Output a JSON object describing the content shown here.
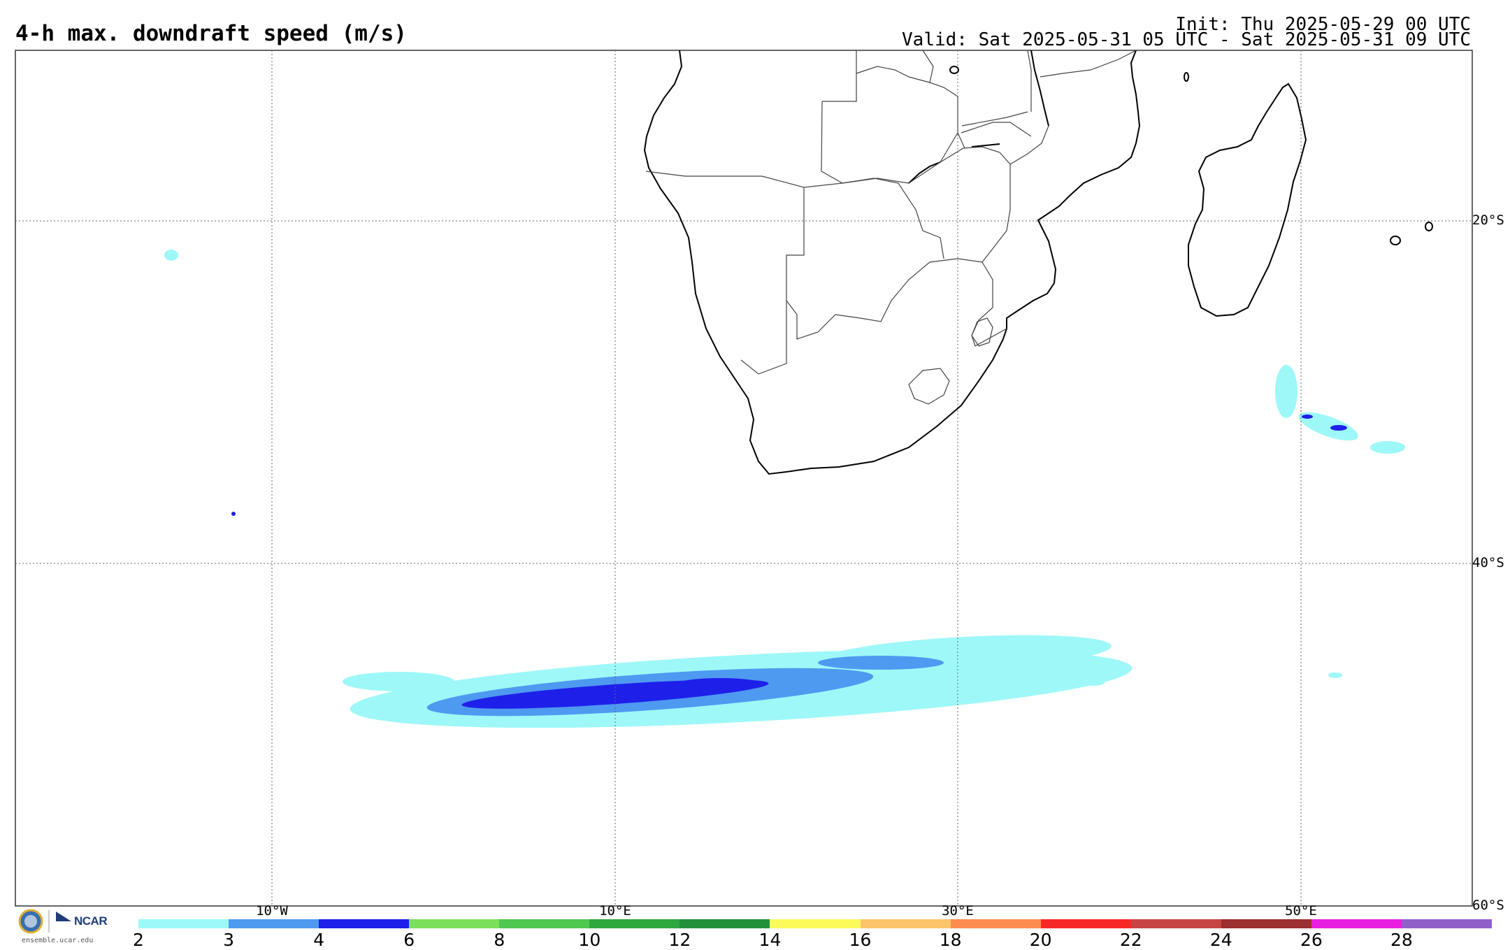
{
  "title": "4-h max. downdraft speed (m/s)",
  "init_text": "Init: Thu 2025-05-29 00 UTC",
  "valid_text": "Valid: Sat 2025-05-31 05 UTC - Sat 2025-05-31 09 UTC",
  "latitude_labels": [
    "20°S",
    "40°S",
    "60°S"
  ],
  "longitude_labels": [
    "10°W",
    "10°E",
    "30°E",
    "50°E"
  ],
  "colorbar": {
    "ticks": [
      "2",
      "3",
      "4",
      "6",
      "8",
      "10",
      "12",
      "14",
      "16",
      "18",
      "20",
      "22",
      "24",
      "26",
      "28"
    ],
    "colors": [
      "#9ef8f8",
      "#4d9af0",
      "#1f1fea",
      "#7ce05c",
      "#50c850",
      "#2fa73f",
      "#23903a",
      "#fafa5a",
      "#fcc46a",
      "#fc8c50",
      "#f82828",
      "#c84444",
      "#9c2f2f",
      "#e81ee0",
      "#9060c8"
    ]
  },
  "logo": {
    "org_text": "NCAR",
    "site_text": "ensemble.ucar.edu"
  },
  "field_colors": {
    "light": "#9ef8f8",
    "medium": "#4d9af0",
    "strong": "#1f1fea"
  }
}
